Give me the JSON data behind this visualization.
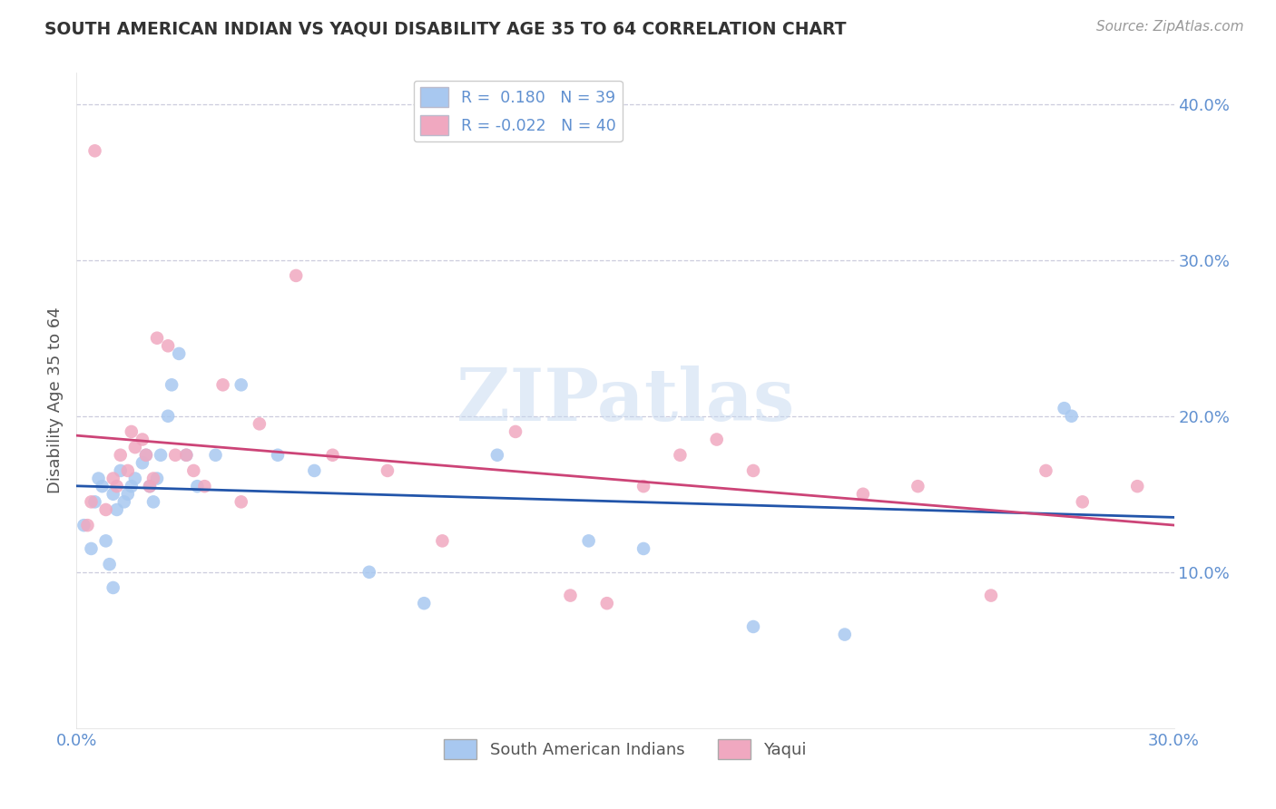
{
  "title": "SOUTH AMERICAN INDIAN VS YAQUI DISABILITY AGE 35 TO 64 CORRELATION CHART",
  "source": "Source: ZipAtlas.com",
  "ylabel": "Disability Age 35 to 64",
  "xlim": [
    0.0,
    0.3
  ],
  "ylim": [
    0.0,
    0.42
  ],
  "xtick_vals": [
    0.0,
    0.1,
    0.2,
    0.3
  ],
  "xtick_labels": [
    "0.0%",
    "",
    "",
    "30.0%"
  ],
  "ytick_vals": [
    0.1,
    0.2,
    0.3,
    0.4
  ],
  "ytick_labels": [
    "10.0%",
    "20.0%",
    "30.0%",
    "40.0%"
  ],
  "r_blue": 0.18,
  "n_blue": 39,
  "r_pink": -0.022,
  "n_pink": 40,
  "blue_scatter_color": "#a8c8f0",
  "pink_scatter_color": "#f0a8c0",
  "blue_line_color": "#2255aa",
  "pink_line_color": "#cc4477",
  "legend_label_blue": "South American Indians",
  "legend_label_pink": "Yaqui",
  "watermark": "ZIPatlas",
  "background_color": "#ffffff",
  "grid_color": "#ccccdd",
  "title_color": "#333333",
  "axis_label_color": "#555555",
  "tick_color": "#6090d0",
  "source_color": "#999999",
  "blue_scatter_x": [
    0.002,
    0.004,
    0.005,
    0.006,
    0.007,
    0.008,
    0.009,
    0.01,
    0.01,
    0.011,
    0.012,
    0.013,
    0.014,
    0.015,
    0.016,
    0.018,
    0.019,
    0.02,
    0.021,
    0.022,
    0.023,
    0.025,
    0.026,
    0.028,
    0.03,
    0.033,
    0.038,
    0.045,
    0.055,
    0.065,
    0.08,
    0.095,
    0.115,
    0.14,
    0.155,
    0.185,
    0.21,
    0.27,
    0.272
  ],
  "blue_scatter_y": [
    0.13,
    0.115,
    0.145,
    0.16,
    0.155,
    0.12,
    0.105,
    0.09,
    0.15,
    0.14,
    0.165,
    0.145,
    0.15,
    0.155,
    0.16,
    0.17,
    0.175,
    0.155,
    0.145,
    0.16,
    0.175,
    0.2,
    0.22,
    0.24,
    0.175,
    0.155,
    0.175,
    0.22,
    0.175,
    0.165,
    0.1,
    0.08,
    0.175,
    0.12,
    0.115,
    0.065,
    0.06,
    0.205,
    0.2
  ],
  "pink_scatter_x": [
    0.003,
    0.004,
    0.005,
    0.008,
    0.01,
    0.011,
    0.012,
    0.014,
    0.015,
    0.016,
    0.018,
    0.019,
    0.02,
    0.021,
    0.022,
    0.025,
    0.027,
    0.03,
    0.032,
    0.035,
    0.04,
    0.045,
    0.05,
    0.06,
    0.07,
    0.085,
    0.1,
    0.12,
    0.135,
    0.145,
    0.155,
    0.165,
    0.175,
    0.185,
    0.215,
    0.23,
    0.25,
    0.265,
    0.275,
    0.29
  ],
  "pink_scatter_y": [
    0.13,
    0.145,
    0.37,
    0.14,
    0.16,
    0.155,
    0.175,
    0.165,
    0.19,
    0.18,
    0.185,
    0.175,
    0.155,
    0.16,
    0.25,
    0.245,
    0.175,
    0.175,
    0.165,
    0.155,
    0.22,
    0.145,
    0.195,
    0.29,
    0.175,
    0.165,
    0.12,
    0.19,
    0.085,
    0.08,
    0.155,
    0.175,
    0.185,
    0.165,
    0.15,
    0.155,
    0.085,
    0.165,
    0.145,
    0.155
  ]
}
